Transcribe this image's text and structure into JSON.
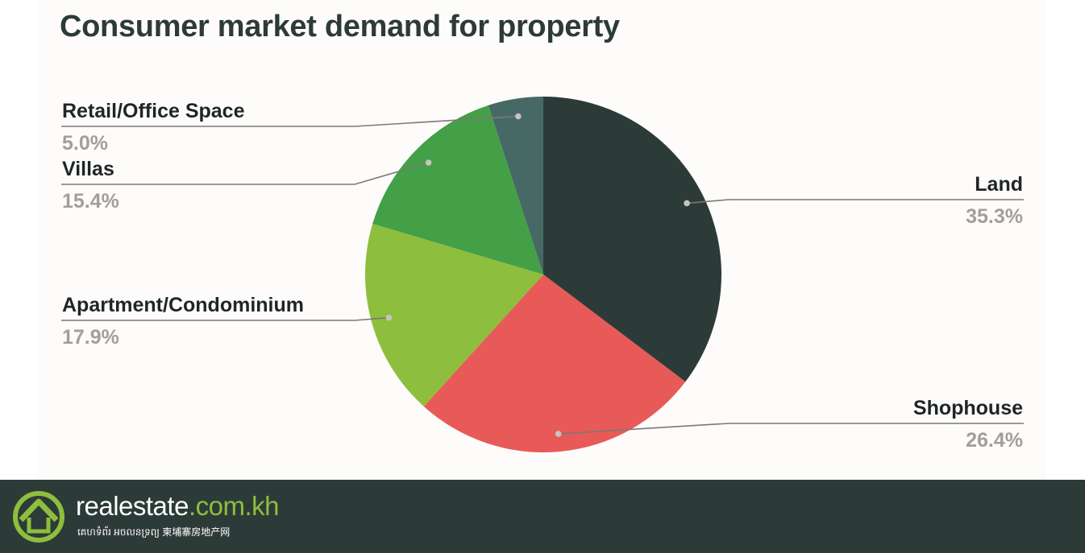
{
  "chart_data": {
    "type": "pie",
    "title": "Consumer market demand for property",
    "slices": [
      {
        "label": "Land",
        "value": 35.3,
        "value_label": "35.3%",
        "color": "#2d3b38"
      },
      {
        "label": "Shophouse",
        "value": 26.4,
        "value_label": "26.4%",
        "color": "#e85a57"
      },
      {
        "label": "Apartment/Condominium",
        "value": 17.9,
        "value_label": "17.9%",
        "color": "#8dbe3d"
      },
      {
        "label": "Villas",
        "value": 15.4,
        "value_label": "15.4%",
        "color": "#43a047"
      },
      {
        "label": "Retail/Office Space",
        "value": 5.0,
        "value_label": "5.0%",
        "color": "#476965"
      }
    ],
    "start_angle": "12 o'clock, clockwise",
    "legend": "callout labels outside pie"
  },
  "footer": {
    "brand": "realestate",
    "brand_domain": ".com.kh",
    "tagline": "គេហទំព័រ អចលនទ្រព្យ   柬埔寨房地产网",
    "logo_icon": "house-logo-icon",
    "background": "#2d3b38",
    "accent": "#8dbe3d"
  }
}
